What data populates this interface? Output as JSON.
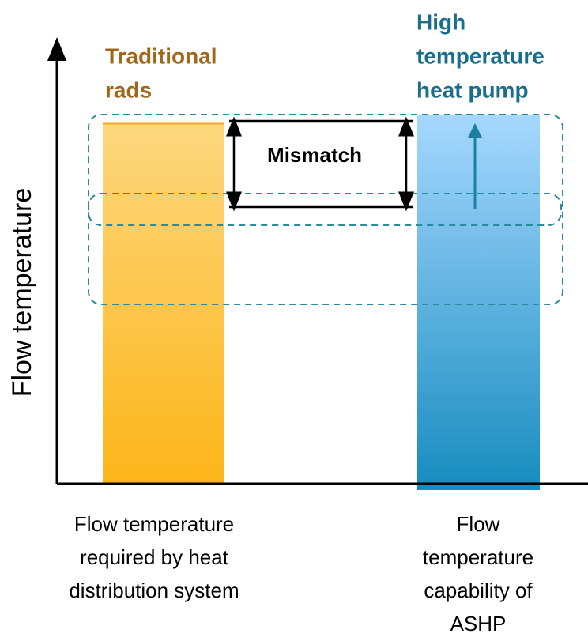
{
  "labels": {
    "left_bar": [
      "Traditional",
      "rads"
    ],
    "right_bar": [
      "High",
      "temperature",
      "heat pump"
    ],
    "mismatch": "Mismatch",
    "y_axis": "Flow temperature",
    "x_labels": [
      [
        "Flow temperature",
        "required by heat",
        "distribution system"
      ],
      [
        "Flow",
        "temperature",
        "capability of",
        "ASHP"
      ]
    ]
  }
}
